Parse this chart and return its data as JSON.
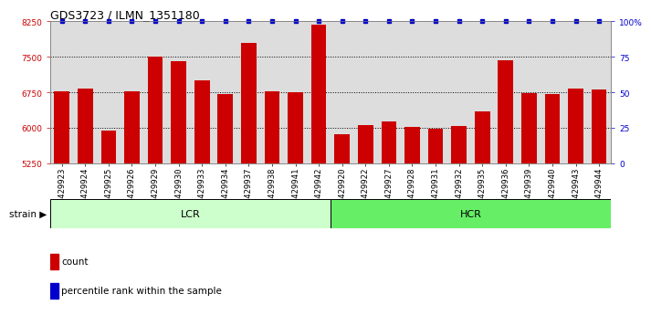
{
  "title": "GDS3723 / ILMN_1351180",
  "samples": [
    "GSM429923",
    "GSM429924",
    "GSM429925",
    "GSM429926",
    "GSM429929",
    "GSM429930",
    "GSM429933",
    "GSM429934",
    "GSM429937",
    "GSM429938",
    "GSM429941",
    "GSM429942",
    "GSM429920",
    "GSM429922",
    "GSM429927",
    "GSM429928",
    "GSM429931",
    "GSM429932",
    "GSM429935",
    "GSM429936",
    "GSM429939",
    "GSM429940",
    "GSM429943",
    "GSM429944"
  ],
  "values": [
    6780,
    6830,
    5940,
    6780,
    7510,
    7420,
    7000,
    6710,
    7800,
    6780,
    6750,
    8180,
    5870,
    6060,
    6140,
    6020,
    5980,
    6040,
    6360,
    7430,
    6730,
    6720,
    6830,
    6820
  ],
  "lcr_count": 12,
  "hcr_count": 12,
  "bar_color": "#cc0000",
  "dot_color": "#0000cc",
  "ylim_left": [
    5250,
    8250
  ],
  "ylim_right": [
    0,
    100
  ],
  "yticks_left": [
    5250,
    6000,
    6750,
    7500,
    8250
  ],
  "yticks_right": [
    0,
    25,
    50,
    75,
    100
  ],
  "ytick_labels_right": [
    "0",
    "25",
    "50",
    "75",
    "100%"
  ],
  "dotted_lines": [
    6000,
    6750,
    7500
  ],
  "lcr_color": "#ccffcc",
  "hcr_color": "#66ee66",
  "strain_label": "strain",
  "legend_count_label": "count",
  "legend_percentile_label": "percentile rank within the sample",
  "title_fontsize": 9,
  "tick_label_fontsize": 6.5,
  "axis_label_color_left": "#cc0000",
  "axis_label_color_right": "#0000cc",
  "bg_color": "#dddddd"
}
